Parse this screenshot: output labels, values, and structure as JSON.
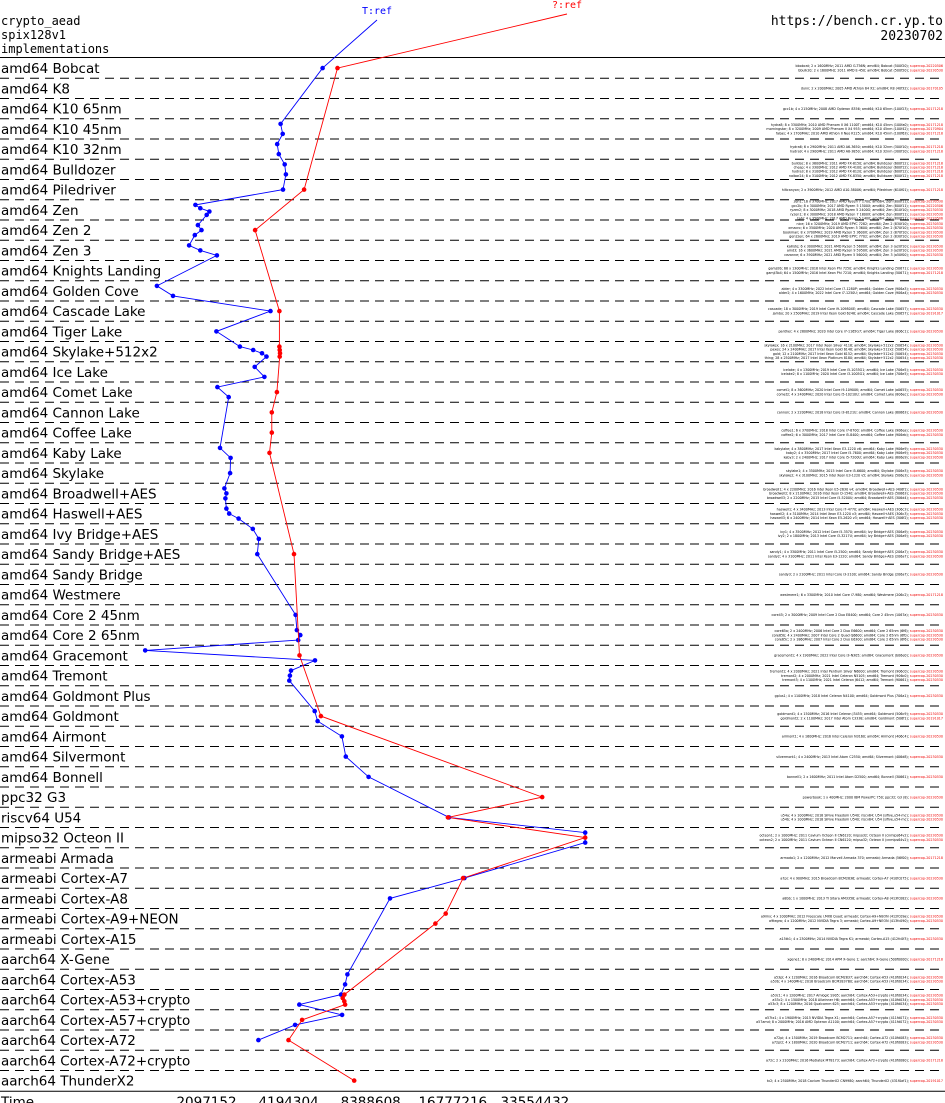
{
  "header": {
    "left": [
      "crypto_aead",
      "spix128v1",
      "implementations"
    ],
    "right": [
      "https://bench.cr.yp.to",
      "20230702"
    ]
  },
  "chart_data": {
    "type": "scatter",
    "title": "",
    "xlabel": "Time",
    "x_scale": "log",
    "x_ticks": [
      2097152,
      4194304,
      8388608,
      16777216,
      33554432
    ],
    "xlim": [
      524288,
      67108864
    ],
    "series": [
      {
        "name": "T:ref",
        "color": "#0000ff"
      },
      {
        "name": "?:ref",
        "color": "#ff0000"
      }
    ],
    "rows": [
      {
        "label": "amd64 Bobcat",
        "T": [
          5590000
        ],
        "Q": [
          6340000
        ]
      },
      {
        "label": "amd64 K8",
        "T": [],
        "Q": []
      },
      {
        "label": "amd64 K10 65nm",
        "T": [],
        "Q": []
      },
      {
        "label": "amd64 K10 45nm",
        "T": [
          3920000,
          3990000
        ],
        "Q": []
      },
      {
        "label": "amd64 K10 32nm",
        "T": [
          3810000,
          3860000
        ],
        "Q": []
      },
      {
        "label": "amd64 Bulldozer",
        "T": [
          4060000,
          4100000
        ],
        "Q": []
      },
      {
        "label": "amd64 Piledriver",
        "T": [
          4000000
        ],
        "Q": [
          4780000
        ]
      },
      {
        "label": "amd64 Zen",
        "T": [
          1910000,
          1990000,
          2150000,
          2100000
        ],
        "Q": []
      },
      {
        "label": "amd64 Zen 2",
        "T": [
          1950000,
          2010000,
          1900000
        ],
        "Q": [
          3160000
        ]
      },
      {
        "label": "amd64 Zen 3",
        "T": [
          1810000,
          1990000,
          2290000
        ],
        "Q": []
      },
      {
        "label": "amd64 Knights Landing",
        "T": [],
        "Q": []
      },
      {
        "label": "amd64 Golden Cove",
        "T": [
          1380000,
          1580000
        ],
        "Q": []
      },
      {
        "label": "amd64 Cascade Lake",
        "T": [
          3600000
        ],
        "Q": [
          3880000
        ]
      },
      {
        "label": "amd64 Tiger Lake",
        "T": [
          2280000
        ],
        "Q": []
      },
      {
        "label": "amd64 Skylake+512x2",
        "T": [
          2780000,
          3110000,
          3350000,
          3480000
        ],
        "Q": [
          3880000,
          3890000,
          3900000,
          3890000
        ]
      },
      {
        "label": "amd64 Ice Lake",
        "T": [
          3150000,
          3420000
        ],
        "Q": []
      },
      {
        "label": "amd64 Comet Lake",
        "T": [
          2300000,
          2530000
        ],
        "Q": [
          3800000
        ]
      },
      {
        "label": "amd64 Cannon Lake",
        "T": [],
        "Q": [
          3640000
        ]
      },
      {
        "label": "amd64 Coffee Lake",
        "T": [],
        "Q": [
          3640000
        ]
      },
      {
        "label": "amd64 Kaby Lake",
        "T": [
          2350000,
          2570000
        ],
        "Q": [
          3570000
        ]
      },
      {
        "label": "amd64 Skylake",
        "T": [
          2560000
        ],
        "Q": []
      },
      {
        "label": "amd64 Broadwell+AES",
        "T": [
          2440000,
          2480000,
          2460000
        ],
        "Q": []
      },
      {
        "label": "amd64 Haswell+AES",
        "T": [
          2480000,
          2540000,
          2750000
        ],
        "Q": []
      },
      {
        "label": "amd64 Ivy Bridge+AES",
        "T": [
          3100000,
          3260000
        ],
        "Q": []
      },
      {
        "label": "amd64 Sandy Bridge+AES",
        "T": [
          3220000
        ],
        "Q": [
          4390000
        ]
      },
      {
        "label": "amd64 Sandy Bridge",
        "T": [],
        "Q": []
      },
      {
        "label": "amd64 Westmere",
        "T": [],
        "Q": []
      },
      {
        "label": "amd64 Core 2 45nm",
        "T": [
          4450000
        ],
        "Q": []
      },
      {
        "label": "amd64 Core 2 65nm",
        "T": [
          4500000,
          4630000,
          4550000
        ],
        "Q": []
      },
      {
        "label": "amd64 Gracemont",
        "T": [
          1250000,
          5240000
        ],
        "Q": [
          4600000
        ]
      },
      {
        "label": "amd64 Tremont",
        "T": [
          4280000,
          4240000,
          4220000
        ],
        "Q": []
      },
      {
        "label": "amd64 Goldmont Plus",
        "T": [],
        "Q": []
      },
      {
        "label": "amd64 Goldmont",
        "T": [
          5230000,
          5360000
        ],
        "Q": [
          5510000
        ]
      },
      {
        "label": "amd64 Airmont",
        "T": [
          6580000
        ],
        "Q": []
      },
      {
        "label": "amd64 Silvermont",
        "T": [
          6800000
        ],
        "Q": []
      },
      {
        "label": "amd64 Bonnell",
        "T": [
          8240000
        ],
        "Q": []
      },
      {
        "label": "ppc32 G3",
        "T": [],
        "Q": [
          35700000
        ]
      },
      {
        "label": "riscv64 U54",
        "T": [
          16250000
        ],
        "Q": [
          16100000
        ]
      },
      {
        "label": "mipso32 Octeon II",
        "T": [
          51300000,
          51300000
        ],
        "Q": [
          51300000
        ]
      },
      {
        "label": "armeabi Armada",
        "T": [],
        "Q": []
      },
      {
        "label": "armeabi Cortex-A7",
        "T": [
          18500000
        ],
        "Q": [
          18300000
        ]
      },
      {
        "label": "armeabi Cortex-A8",
        "T": [
          9870000
        ],
        "Q": []
      },
      {
        "label": "armeabi Cortex-A9+NEON",
        "T": [],
        "Q": [
          15800000,
          14480000
        ]
      },
      {
        "label": "armeabi Cortex-A15",
        "T": [],
        "Q": []
      },
      {
        "label": "aarch64 X-Gene",
        "T": [],
        "Q": []
      },
      {
        "label": "aarch64 Cortex-A53",
        "T": [
          6890000,
          6760000
        ],
        "Q": []
      },
      {
        "label": "aarch64 Cortex-A53+crypto",
        "T": [
          6530000,
          4590000
        ],
        "Q": [
          6720000,
          6620000,
          6710000,
          6760000
        ]
      },
      {
        "label": "aarch64 Cortex-A57+crypto",
        "T": [
          6590000,
          4430000
        ],
        "Q": [
          4700000
        ]
      },
      {
        "label": "aarch64 Cortex-A72",
        "T": [
          3250000
        ],
        "Q": [
          4190000
        ]
      },
      {
        "label": "aarch64 Cortex-A72+crypto",
        "T": [],
        "Q": []
      },
      {
        "label": "aarch64 ThunderX2",
        "T": [],
        "Q": [
          7300000
        ]
      }
    ]
  },
  "machine_details": [
    [
      "bbobcat; 2 x 1600MHz; 2011 AMD G-T56N; amd64; Bobcat (500f20); supercop-20220506",
      "bbulk20; 2 x 1600MHz; 2011 AMD E-450; amd64; Bobcat (500f20); supercop-20230530"
    ],
    [
      "dunn; 2 x 2000MHz; 2005 AMD Athlon 64 X2; amd64; K8 (40f32); supercop-20170105"
    ],
    [
      "gcc1b; 4 x 2150MHz; 2008 AMD Opteron 8356; amd64; K10 65nm (100f23); supercop-20171218"
    ],
    [
      "hydra8; 8 x 3300MHz; 2010 AMD Phenom II X6 1100T; amd64; K10 45nm (100fa0); supercop-20171218",
      "morningstar; 8 x 3200MHz; 2009 AMD Phenom II X4 955; amd64; K10 45nm (100f42); supercop-20170904",
      "fabas; 4 x 1700MHz; 2010 AMD Athlon II Neo K125; amd64; K10 45nm (100f63); supercop-20171218"
    ],
    [
      "hydra6; 6 x 2900MHz; 2011 AMD A6-3650; amd64; K10 32nm (300f10); supercop-20171218",
      "hydra9; 4 x 2900MHz; 2011 AMD A8-3850; amd64; K10 32nm (300f10); supercop-20171218"
    ],
    [
      "bulldoc; 8 x 3600MHz; 2011 AMD FX-8150; amd64; Bulldozer (600f12); supercop-20171218",
      "cheap; 4 x 3300MHz; 2012 AMD FX-4100; amd64; Bulldozer (600f12); supercop-20171218",
      "hydra3; 8 x 3100MHz; 2012 AMD FX-8120; amd64; Bulldozer (600f12); supercop-20171218",
      "naibar24; 8 x 3100MHz; 2012 AMD FX-8350; amd64; Bulldozer (600f12); supercop-20171218"
    ],
    [
      "hiltcanyon; 2 x 3900MHz; 2012 AMD A10-5800K; amd64; Piledriver (610f01); supercop-20171218"
    ],
    [
      "zen1; 16 x 3700MHz; 2017 AMD Ryzen 7 1700; amd64; Zen (800f11); supercop-20230530",
      "gcc2b; 8 x 3000MHz; 2017 AMD Ryzen 5 1500X; amd64; Zen (800f11); supercop-20220506",
      "ryzen2; 8 x 3000MHz; 2018 AMD Ryzen 5 2400G; amd64; Zen (810f10); supercop-20230530",
      "ryzen1; 8 x 3000MHz; 2018 AMD Ryzen 7 1800X; amd64; Zen (800f11); supercop-20230530",
      "tahi; 4 x 3500MHz; 2017 AMD Ryzen 5 1400; amd64; Zen (800f11); supercop-20220506"
    ],
    [
      "nice; 16 x 3200MHz; 2019 AMD EPYC 7282; amd64; Zen 2 (830f10); supercop-20230530",
      "xmacro; 6 x 3500MHz; 2020 AMD Ryzen 5 3600; amd64; Zen 2 (870f10); supercop-20230530",
      "bookman; 8 x 3700MHz; 2019 AMD Ryzen 5 3600X; amd64; Zen 2 (870f10); supercop-20230530",
      "gen2zen; 64 x 2600MHz; 2019 AMD EPYC 7702; amd64; Zen 2 (830f10); supercop-20230530"
    ],
    [
      "kalliste; 6 x 3000MHz; 2021 AMD Ryzen 5 5600X; amd64; Zen 3 (a20f10); supercop-20230530",
      "amd3; 16 x 3600MHz; 2021 AMD Ryzen 9 5950X; amd64; Zen 3 (a20f10); supercop-20230530",
      "cezanne; 6 x 3900MHz; 2021 AMD Ryzen 5 5600G; amd64; Zen 3 (a50f00); supercop-20230530"
    ],
    [
      "gamji3b; 68 x 1300MHz; 2016 Intel Xeon Phi 7250; amd64; Knights Landing (50671); supercop-20230530",
      "gamji3b4; 64 x 1500MHz; 2016 Intel Xeon Phi 7210; amd64; Knights Landing (50671); supercop-20171218"
    ],
    [
      "alder; 4 x 3300MHz; 2022 Intel Core i7-1280P; amd64; Golden Cove (906a3); supercop-20230530",
      "alder2; 4 x 1600MHz; 2022 Intel Core i7-1250U; amd64; Golden Cove (906a4); supercop-20230530"
    ],
    [
      "cascade; 18 x 3000MHz; 2019 Intel Core i9-10980XE; amd64; Cascade Lake (50657); supercop-20230530",
      "jambo; 20 x 2500MHz; 2019 Intel Xeon Gold 6248; amd64; Cascade Lake (50657); supercop-20191017"
    ],
    [
      "panther; 4 x 2800MHz; 2020 Intel Core i7-1165G7; amd64; Tiger Lake (806c1); supercop-20230530"
    ],
    [
      "skylakex; 16 x 2100MHz; 2017 Intel Xeon Silver 4116; amd64; Skylake+512x2 (50654); supercop-20230530",
      "paxos; 24 x 2400MHz; 2017 Intel Xeon Gold 6148; amd64; Skylake+512x2 (50654); supercop-20230530",
      "gold; 12 x 2100MHz; 2017 Intel Xeon Gold 6152; amd64; Skylake+512x2 (50654); supercop-20230530",
      "thing; 28 x 2500MHz; 2017 Intel Xeon Platinum 8180; amd64; Skylake+512x2 (50654); supercop-20230530"
    ],
    [
      "icelake; 4 x 1300MHz; 2019 Intel Core i5-1035G1; amd64; Ice Lake (706e5); supercop-20230530",
      "icelake2; 8 x 1100MHz; 2020 Intel Core i3-1005G1; amd64; Ice Lake (706e5); supercop-20230530"
    ],
    [
      "comet1; 8 x 3600MHz; 2020 Intel Core i9-10900K; amd64; Comet Lake (a0655); supercop-20230530",
      "comet2; 4 x 2400MHz; 2020 Intel Core i5-10210U; amd64; Comet Lake (806ec); supercop-20230530"
    ],
    [
      "cannon; 2 x 2200MHz; 2018 Intel Core i3-8121U; amd64; Cannon Lake (60663); supercop-20230530"
    ],
    [
      "coffee1; 6 x 3700MHz; 2018 Intel Core i7-8700; amd64; Coffee Lake (906ea); supercop-20230530",
      "coffee2; 6 x 3000MHz; 2017 Intel Core i5-8400; amd64; Coffee Lake (906eb); supercop-20230530"
    ],
    [
      "kabylake; 4 x 3800MHz; 2017 Intel Xeon E3-1220 v6; amd64; Kaby Lake (906e9); supercop-20230530",
      "kaby2; 4 x 3500MHz; 2017 Intel Core i5-7600; amd64; Kaby Lake (906e9); supercop-20230530",
      "kaby3; 2 x 2400MHz; 2017 Intel Core i5-7200U; amd64; Kaby Lake (806e9); supercop-20230530"
    ],
    [
      "skylake1; 4 x 3500MHz; 2015 Intel Core i5-6600; amd64; Skylake (506e3); supercop-20230530",
      "skylake2; 4 x 3100MHz; 2015 Intel Xeon E3-1220 v5; amd64; Skylake (506e3); supercop-20230530"
    ],
    [
      "broadwell1; 4 x 2200MHz; 2016 Intel Xeon E5-2630 v4; amd64; Broadwell+AES (406f1); supercop-20230530",
      "broadwell2; 8 x 2100MHz; 2016 Intel Xeon D-1540; amd64; Broadwell+AES (50663); supercop-20230530",
      "broadwell3; 2 x 2200MHz; 2015 Intel Core i5-5200U; amd64; Broadwell+AES (306d4); supercop-20230530"
    ],
    [
      "haswell1; 4 x 3400MHz; 2013 Intel Core i7-4770; amd64; Haswell+AES (306c3); supercop-20230530",
      "haswell2; 4 x 3100MHz; 2014 Intel Xeon E3-1220 v3; amd64; Haswell+AES (306c3); supercop-20230530",
      "haswell3; 6 x 2400MHz; 2014 Intel Xeon E5-2620 v3; amd64; Haswell+AES (306f2); supercop-20230530"
    ],
    [
      "ivy1; 4 x 3500MHz; 2012 Intel Core i5-3570; amd64; Ivy Bridge+AES (306a9); supercop-20230530",
      "ivy2; 2 x 1800MHz; 2013 Intel Core i3-3217U; amd64; Ivy Bridge+AES (306a9); supercop-20230530"
    ],
    [
      "sandy1; 4 x 3300MHz; 2011 Intel Core i5-2500; amd64; Sandy Bridge+AES (206a7); supercop-20230530",
      "sandy2; 4 x 3100MHz; 2011 Intel Xeon E3-1220; amd64; Sandy Bridge+AES (206a7); supercop-20230530"
    ],
    [
      "sandy3; 2 x 2100MHz; 2011 Intel Core i3-2100; amd64; Sandy Bridge (206a7); supercop-20230530"
    ],
    [
      "westmere1; 6 x 3300MHz; 2010 Intel Core i7-980; amd64; Westmere (206c2); supercop-20171218"
    ],
    [
      "core45; 2 x 3000MHz; 2009 Intel Core 2 Duo E8400; amd64; Core 2 45nm (1067a); supercop-20230530"
    ],
    [
      "core65a; 2 x 2400MHz; 2006 Intel Core 2 Duo E6600; amd64; Core 2 65nm (6f6); supercop-20230530",
      "core65b; 4 x 2400MHz; 2007 Intel Core 2 Quad Q6600; amd64; Core 2 65nm (6fb); supercop-20230530",
      "core65c; 2 x 1860MHz; 2007 Intel Core 2 Duo E6300; amd64; Core 2 65nm (6f6); supercop-20230530"
    ],
    [
      "gracemont1; 4 x 1900MHz; 2022 Intel Core i3-N305; amd64; Gracemont (b06e0); supercop-20230530"
    ],
    [
      "tremont1; 4 x 2000MHz; 2021 Intel Pentium Silver N6000; amd64; Tremont (906c0); supercop-20230530",
      "tremont2; 4 x 2000MHz; 2021 Intel Celeron N5105; amd64; Tremont (906c0); supercop-20230530",
      "tremont3; 4 x 1100MHz; 2021 Intel Celeron J6412; amd64; Tremont (90661); supercop-20230530"
    ],
    [
      "gplus1; 4 x 1100MHz; 2018 Intel Celeron N4100; amd64; Goldmont Plus (706a1); supercop-20230530"
    ],
    [
      "goldmont1; 4 x 1500MHz; 2016 Intel Celeron J3455; amd64; Goldmont (506c9); supercop-20230530",
      "goldmont2; 2 x 1100MHz; 2017 Intel Atom C3338; amd64; Goldmont (506f1); supercop-20191017"
    ],
    [
      "airmont1; 4 x 1600MHz; 2016 Intel Celeron N3160; amd64; Airmont (406c4); supercop-20230530"
    ],
    [
      "silvermont1; 4 x 2400MHz; 2013 Intel Atom C2550; amd64; Silvermont (406d8); supercop-20230530"
    ],
    [
      "bonnell1; 2 x 1600MHz; 2011 Intel Atom D2500; amd64; Bonnell (30661); supercop-20230530"
    ],
    [
      "powerbook; 1 x 400MHz; 2000 IBM PowerPC 750; ppc32; G3 (8); supercop-20230530"
    ],
    [
      "u54a; 4 x 1000MHz; 2018 SiFive Freedom U540; riscv64; U54 (sifive,u54-mc); supercop-20230530",
      "u54b; 4 x 1000MHz; 2018 SiFive Freedom U540; riscv64; U54 (sifive,u54-mc); supercop-20230530"
    ],
    [
      "octeon1; 2 x 1000MHz; 2011 Cavium Octeon II CN6120; mipso32; Octeon II (cnmips64v2); supercop-20230530",
      "octeon2; 2 x 1000MHz; 2011 Cavium Octeon II CN6120; mipso32; Octeon II (cnmips64v2); supercop-20230530"
    ],
    [
      "armada1; 2 x 1200MHz; 2012 Marvell Armada 370; armeabi; Armada (56f00); supercop-20171218"
    ],
    [
      "a7pi; 4 x 900MHz; 2015 Broadcom BCM2836; armeabi; Cortex-A7 (410fc075); supercop-20230530"
    ],
    [
      "a8bb; 1 x 1000MHz; 2013 TI Sitara AM3358; armeabi; Cortex-A8 (413fc082); supercop-20230530"
    ],
    [
      "a9imx; 4 x 1000MHz; 2012 Freescale i.MX6 Quad; armeabi; Cortex-A9+NEON (412fc09a); supercop-20230530",
      "a9tegra; 4 x 1200MHz; 2012 NVIDIA Tegra 3; armeabi; Cortex-A9+NEON (413fc090); supercop-20230530"
    ],
    [
      "a15tk1; 4 x 2300MHz; 2014 NVIDIA Tegra K1; armeabi; Cortex-A15 (412fc0f3); supercop-20230530"
    ],
    [
      "xgene1; 8 x 2400MHz; 2014 APM X-Gene 1; aarch64; X-Gene (500f0000); supercop-20171218"
    ],
    [
      "a53pi; 4 x 1200MHz; 2016 Broadcom BCM2837; aarch64; Cortex-A53 (410fd034); supercop-20230530",
      "a53b; 4 x 1400MHz; 2018 Broadcom BCM2837B0; aarch64; Cortex-A53 (410fd034); supercop-20230530"
    ],
    [
      "a53c1; 4 x 1200MHz; 2017 Amlogic S905; aarch64; Cortex-A53+crypto (410fd034); supercop-20230530",
      "a53c2; 4 x 1500MHz; 2018 Allwinner H6; aarch64; Cortex-A53+crypto (410fd034); supercop-20230530",
      "a53c3; 8 x 1200MHz; 2016 Qualcomm 625; aarch64; Cortex-A53+crypto (410fd034); supercop-20230530"
    ],
    [
      "a57tx1; 4 x 1900MHz; 2015 NVIDIA Tegra X1; aarch64; Cortex-A57+crypto (411fd071); supercop-20230530",
      "a57amd; 8 x 2000MHz; 2016 AMD Opteron A1100; aarch64; Cortex-A57+crypto (411fd072); supercop-20230530"
    ],
    [
      "a72pi; 4 x 1500MHz; 2019 Broadcom BCM2711; aarch64; Cortex-A72 (410fd083); supercop-20230530",
      "a72pi2; 4 x 1800MHz; 2020 Broadcom BCM2711; aarch64; Cortex-A72 (410fd083); supercop-20230530"
    ],
    [
      "a72c; 2 x 2100MHz; 2016 Mediatek MT8173; aarch64; Cortex-A72+crypto (410fd080); supercop-20171218"
    ],
    [
      "tx2; 4 x 2500MHz; 2018 Cavium ThunderX2 CN9980; aarch64; ThunderX2 (431f0af1); supercop-20191017"
    ]
  ]
}
